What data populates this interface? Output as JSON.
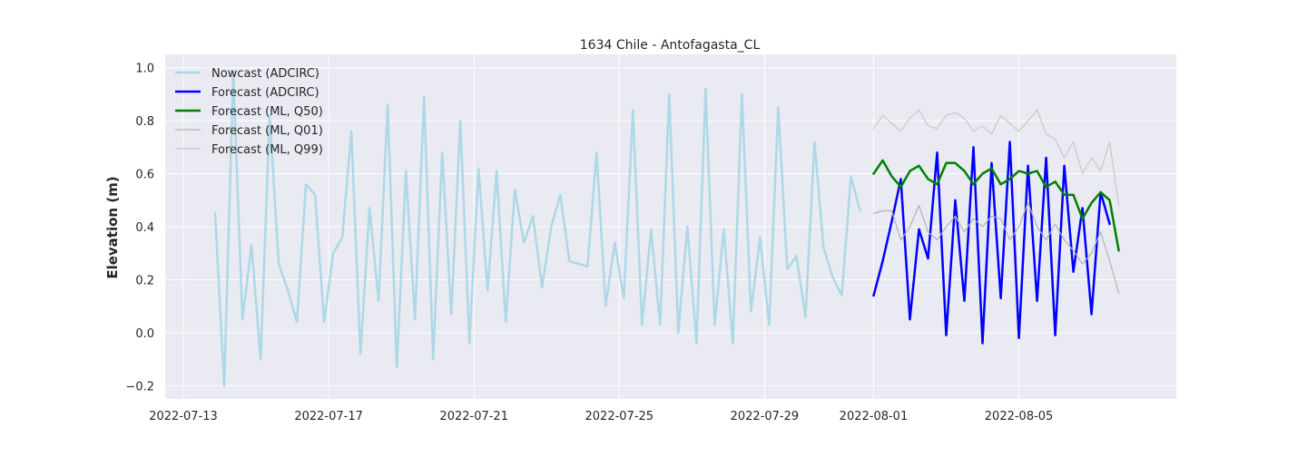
{
  "chart_data": {
    "type": "line",
    "title": "1634 Chile - Antofagasta_CL",
    "xlabel": "",
    "ylabel": "Elevation (m)",
    "x_axis": {
      "type": "date",
      "range": [
        "2022-07-12T12:00",
        "2022-08-09T08:00"
      ],
      "ticks": [
        "2022-07-13",
        "2022-07-17",
        "2022-07-21",
        "2022-07-25",
        "2022-07-29",
        "2022-08-01",
        "2022-08-05"
      ]
    },
    "y_axis": {
      "range": [
        -0.25,
        1.05
      ],
      "ticks": [
        -0.2,
        0.0,
        0.2,
        0.4,
        0.6,
        0.8,
        1.0
      ],
      "tick_labels": [
        "−0.2",
        "0.0",
        "0.2",
        "0.4",
        "0.6",
        "0.8",
        "1.0"
      ]
    },
    "grid": true,
    "legend_position": "top-left",
    "background_color": "#eaeaf2",
    "series": [
      {
        "name": "Nowcast (ADCIRC)",
        "color": "#add8e6",
        "start": "2022-07-13T21:00",
        "interval_hours": 6,
        "values": [
          0.45,
          -0.2,
          0.98,
          0.05,
          0.33,
          -0.1,
          0.82,
          0.26,
          0.16,
          0.04,
          0.56,
          0.52,
          0.04,
          0.3,
          0.36,
          0.76,
          -0.08,
          0.47,
          0.12,
          0.86,
          -0.13,
          0.61,
          0.05,
          0.89,
          -0.1,
          0.68,
          0.07,
          0.8,
          -0.04,
          0.62,
          0.16,
          0.61,
          0.04,
          0.54,
          0.34,
          0.44,
          0.17,
          0.4,
          0.52,
          0.27,
          0.26,
          0.25,
          0.68,
          0.1,
          0.34,
          0.13,
          0.84,
          0.03,
          0.39,
          0.03,
          0.9,
          0.0,
          0.4,
          -0.04,
          0.92,
          0.03,
          0.39,
          -0.04,
          0.9,
          0.08,
          0.36,
          0.03,
          0.85,
          0.24,
          0.29,
          0.06,
          0.72,
          0.32,
          0.21,
          0.14,
          0.59,
          0.46
        ]
      },
      {
        "name": "Forecast (ADCIRC)",
        "color": "#0000ff",
        "start": "2022-08-01T00:00",
        "interval_hours": 6,
        "values": [
          0.14,
          0.27,
          0.42,
          0.58,
          0.05,
          0.39,
          0.28,
          0.68,
          -0.01,
          0.5,
          0.12,
          0.7,
          -0.04,
          0.64,
          0.13,
          0.72,
          -0.02,
          0.63,
          0.12,
          0.66,
          -0.01,
          0.63,
          0.23,
          0.47,
          0.07,
          0.53,
          0.41
        ]
      },
      {
        "name": "Forecast (ML, Q50)",
        "color": "#008000",
        "start": "2022-08-01T00:00",
        "interval_hours": 6,
        "values": [
          0.6,
          0.65,
          0.59,
          0.55,
          0.61,
          0.63,
          0.58,
          0.56,
          0.64,
          0.64,
          0.61,
          0.56,
          0.6,
          0.62,
          0.56,
          0.58,
          0.61,
          0.6,
          0.61,
          0.55,
          0.57,
          0.52,
          0.52,
          0.43,
          0.49,
          0.53,
          0.5,
          0.31
        ]
      },
      {
        "name": "Forecast (ML, Q01)",
        "color": "#b3b3b3",
        "start": "2022-08-01T00:00",
        "interval_hours": 6,
        "values": [
          0.45,
          0.46,
          0.46,
          0.35,
          0.4,
          0.48,
          0.38,
          0.35,
          0.4,
          0.44,
          0.38,
          0.43,
          0.4,
          0.44,
          0.43,
          0.35,
          0.4,
          0.49,
          0.4,
          0.35,
          0.41,
          0.35,
          0.31,
          0.26,
          0.3,
          0.38,
          0.27,
          0.15
        ]
      },
      {
        "name": "Forecast (ML, Q99)",
        "color": "#c8c8c8",
        "start": "2022-08-01T00:00",
        "interval_hours": 6,
        "values": [
          0.77,
          0.82,
          0.79,
          0.76,
          0.81,
          0.84,
          0.78,
          0.77,
          0.82,
          0.83,
          0.81,
          0.76,
          0.78,
          0.75,
          0.82,
          0.79,
          0.76,
          0.8,
          0.84,
          0.75,
          0.73,
          0.66,
          0.72,
          0.6,
          0.66,
          0.61,
          0.72,
          0.48
        ]
      }
    ]
  }
}
